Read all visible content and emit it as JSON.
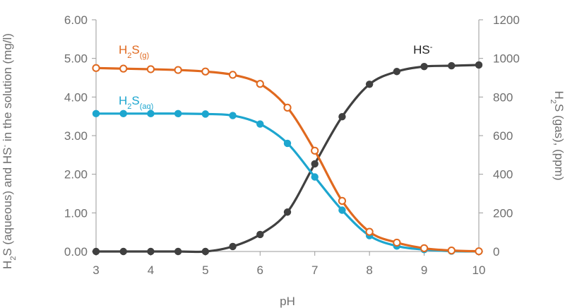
{
  "chart_data": {
    "type": "line",
    "xlabel": "pH",
    "ylabel_left": {
      "main": "H",
      "sub1": "2",
      "mid": "S (aqueous) and HS",
      "sup": "-",
      "tail": " in the solution (mg/l)"
    },
    "ylabel_right": {
      "main": "H",
      "sub1": "2",
      "tail": "S (gas), (ppm)"
    },
    "xlim": [
      3,
      10
    ],
    "ylim_left": [
      0,
      6
    ],
    "ylim_right": [
      0,
      1200
    ],
    "x_ticks": [
      "3",
      "4",
      "5",
      "6",
      "7",
      "8",
      "9",
      "10"
    ],
    "y_left_ticks": [
      "0.00",
      "1.00",
      "2.00",
      "3.00",
      "4.00",
      "5.00",
      "6.00"
    ],
    "y_right_ticks": [
      "0",
      "200",
      "400",
      "600",
      "800",
      "1000",
      "1200"
    ],
    "x": [
      3,
      3.5,
      4,
      4.5,
      5,
      5.5,
      6,
      6.5,
      7,
      7.5,
      8,
      8.5,
      9,
      9.5,
      10
    ],
    "series": [
      {
        "key": "h2s_gas",
        "label": {
          "main": "H",
          "sub1": "2",
          "mid": "S",
          "sub2": "(g)"
        },
        "axis": "right",
        "color": "#e0691f",
        "marker": "hollow",
        "values": [
          950,
          947,
          944,
          940,
          932,
          915,
          868,
          745,
          522,
          262,
          102,
          46,
          17,
          5,
          1
        ]
      },
      {
        "key": "h2s_aq",
        "label": {
          "main": "H",
          "sub1": "2",
          "mid": "S",
          "sub2": "(aq)"
        },
        "axis": "left",
        "color": "#1da6cf",
        "marker": "filled",
        "values": [
          3.57,
          3.57,
          3.57,
          3.57,
          3.56,
          3.52,
          3.3,
          2.8,
          1.93,
          1.07,
          0.41,
          0.14,
          0.05,
          0.01,
          0.0
        ]
      },
      {
        "key": "hs_minus",
        "label": {
          "main": "HS",
          "sup": "-"
        },
        "axis": "left",
        "color": "#404040",
        "marker": "filled",
        "values": [
          0.0,
          0.0,
          0.0,
          0.0,
          0.0,
          0.13,
          0.44,
          1.02,
          2.27,
          3.49,
          4.33,
          4.66,
          4.79,
          4.81,
          4.83
        ]
      }
    ]
  }
}
